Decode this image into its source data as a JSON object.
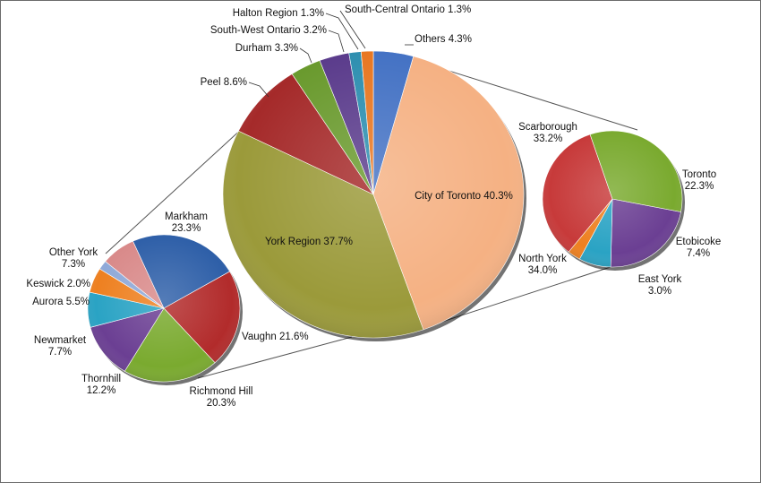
{
  "chart_data": [
    {
      "type": "pie",
      "slices": [
        {
          "label": "Others 4.3%",
          "value": 4.3,
          "color": "#4472c4"
        },
        {
          "label": "City of Toronto 40.3%",
          "value": 40.3,
          "color": "#f5b183"
        },
        {
          "label": "York Region 37.7%",
          "value": 37.7,
          "color": "#9b9a3a"
        },
        {
          "label": "Peel 8.6%",
          "value": 8.6,
          "color": "#a52a2a"
        },
        {
          "label": "Durham 3.3%",
          "value": 3.3,
          "color": "#6a9a2e"
        },
        {
          "label": "South-West Ontario 3.2%",
          "value": 3.2,
          "color": "#5b3c8c"
        },
        {
          "label": "Halton Region 1.3%",
          "value": 1.3,
          "color": "#2e8fb0"
        },
        {
          "label": "South-Central Ontario 1.3%",
          "value": 1.3,
          "color": "#e87722"
        }
      ]
    },
    {
      "type": "pie",
      "slices": [
        {
          "label": [
            "Markham",
            "23.3%"
          ],
          "value": 23.3,
          "color": "#2e5fa8"
        },
        {
          "label": [
            "Vaughn 21.6%"
          ],
          "value": 21.6,
          "color": "#b22b2b"
        },
        {
          "label": [
            "Richmond Hill",
            "20.3%"
          ],
          "value": 20.3,
          "color": "#7aaa2f"
        },
        {
          "label": [
            "Thornhill",
            "12.2%"
          ],
          "value": 12.2,
          "color": "#6b3f93"
        },
        {
          "label": [
            "Newmarket",
            "7.7%"
          ],
          "value": 7.7,
          "color": "#2aa3c4"
        },
        {
          "label": [
            "Aurora 5.5%"
          ],
          "value": 5.5,
          "color": "#ee8020"
        },
        {
          "label": [
            "Keswick 2.0%"
          ],
          "value": 2.0,
          "color": "#8fa9d8"
        },
        {
          "label": [
            "Other York",
            "7.3%"
          ],
          "value": 7.3,
          "color": "#d98a8a"
        }
      ]
    },
    {
      "type": "pie",
      "slices": [
        {
          "label": [
            "Toronto",
            "22.3%"
          ],
          "value": 22.3,
          "color": "#6b3f93"
        },
        {
          "label": [
            "Etobicoke",
            "7.4%"
          ],
          "value": 7.4,
          "color": "#2aa3c4"
        },
        {
          "label": [
            "East York",
            "3.0%"
          ],
          "value": 3.0,
          "color": "#ee8020"
        },
        {
          "label": [
            "North York",
            "34.0%"
          ],
          "value": 34.0,
          "color": "#c73a3a"
        },
        {
          "label": [
            "Scarborough",
            "33.2%"
          ],
          "value": 33.2,
          "color": "#7aaa2f"
        }
      ]
    }
  ]
}
